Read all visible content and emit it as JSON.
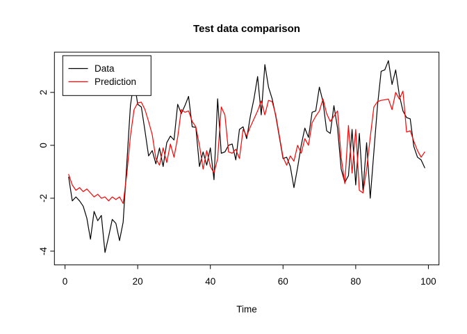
{
  "chart_data": {
    "type": "line",
    "title": "Test data comparison",
    "xlabel": "Time",
    "ylabel": "",
    "x_start": 1,
    "x_ticks": [
      0,
      20,
      40,
      60,
      80,
      100
    ],
    "y_ticks": [
      -4,
      -2,
      0,
      2
    ],
    "xlim": [
      -2.92,
      102.92
    ],
    "ylim": [
      -4.52,
      3.52
    ],
    "grid": false,
    "legend_position": "topleft",
    "background": "#ffffff",
    "series": [
      {
        "name": "Data",
        "color": "#000000",
        "values": [
          -1.2,
          -2.1,
          -1.95,
          -2.1,
          -2.3,
          -2.75,
          -3.55,
          -2.5,
          -2.85,
          -2.65,
          -4.05,
          -3.45,
          -2.8,
          -2.95,
          -3.6,
          -2.9,
          -0.7,
          1.5,
          2.45,
          1.55,
          1.45,
          0.55,
          -0.4,
          -0.2,
          -0.7,
          -0.1,
          -0.8,
          0.1,
          0.35,
          0.2,
          1.55,
          1.2,
          1.5,
          1.85,
          0.7,
          0.68,
          -0.8,
          -0.25,
          -0.75,
          -0.1,
          -1.3,
          1.76,
          -0.3,
          -0.25,
          0.0,
          0.05,
          -0.55,
          0.6,
          0.7,
          0.25,
          1.1,
          1.76,
          2.6,
          1.15,
          3.05,
          2.2,
          1.76,
          1.1,
          0.3,
          -0.5,
          -0.45,
          -0.8,
          -1.6,
          -0.85,
          0.0,
          0.65,
          0.3,
          1.25,
          1.3,
          2.2,
          1.65,
          0.55,
          0.45,
          1.5,
          0.65,
          -0.9,
          -1.4,
          -1.15,
          0.6,
          -1.5,
          0.45,
          -1.7,
          0.1,
          -2.0,
          -0.25,
          1.5,
          2.8,
          2.85,
          3.2,
          2.3,
          2.85,
          1.9,
          1.3,
          1.05,
          1.0,
          -0.05,
          -0.45,
          -0.55,
          -0.85
        ]
      },
      {
        "name": "Prediction",
        "color": "#ff0000",
        "values": [
          -1.1,
          -1.5,
          -1.7,
          -1.6,
          -1.75,
          -1.65,
          -1.8,
          -1.95,
          -1.85,
          -2.0,
          -1.95,
          -2.1,
          -1.95,
          -2.05,
          -1.95,
          -2.2,
          -1.1,
          0.35,
          1.35,
          1.6,
          1.63,
          1.35,
          0.9,
          0.4,
          -0.5,
          -0.75,
          -0.1,
          -0.65,
          0.05,
          -0.45,
          0.3,
          1.35,
          1.25,
          1.3,
          0.9,
          0.7,
          0.0,
          -0.9,
          -0.2,
          -0.8,
          -1.05,
          -0.5,
          1.45,
          1.15,
          -0.25,
          -0.3,
          -0.15,
          -0.5,
          0.6,
          0.35,
          0.7,
          1.0,
          1.3,
          1.68,
          1.15,
          1.7,
          1.65,
          1.15,
          0.35,
          -0.45,
          -0.75,
          -0.4,
          -0.6,
          0.0,
          -0.3,
          0.25,
          0.0,
          0.85,
          1.1,
          1.3,
          1.75,
          1.2,
          0.9,
          1.1,
          1.3,
          -0.45,
          -1.45,
          0.75,
          -1.05,
          0.6,
          -1.7,
          -1.8,
          -0.9,
          0.3,
          1.45,
          1.65,
          1.7,
          1.72,
          1.75,
          1.35,
          2.0,
          1.75,
          2.05,
          0.5,
          0.55,
          0.15,
          -0.2,
          -0.45,
          -0.25
        ]
      }
    ]
  },
  "legend": {
    "items": [
      {
        "label": "Data"
      },
      {
        "label": "Prediction"
      }
    ]
  }
}
